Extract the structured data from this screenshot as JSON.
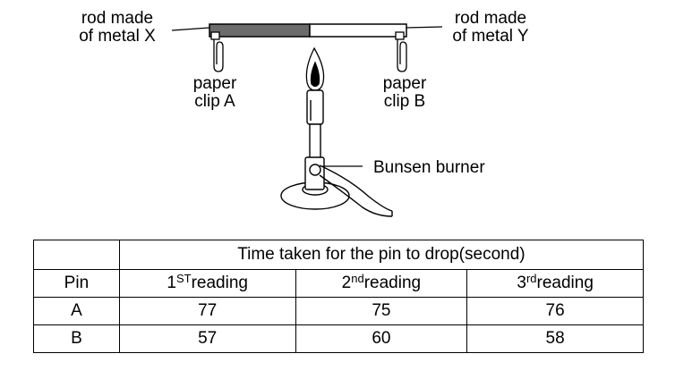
{
  "diagram": {
    "label_rod_x": [
      "rod made",
      "of metal X"
    ],
    "label_rod_y": [
      "rod made",
      "of metal Y"
    ],
    "label_clip_a": [
      "paper",
      "clip A"
    ],
    "label_clip_b": [
      "paper",
      "clip B"
    ],
    "label_burner": "Bunsen burner"
  },
  "table": {
    "group_header": "Time taken for the pin to drop(second)",
    "pin_header": "Pin",
    "reading_headers": [
      {
        "num": "1",
        "suffix": "ST",
        "word": "reading"
      },
      {
        "num": "2",
        "suffix": "nd",
        "word": "reading"
      },
      {
        "num": "3",
        "suffix": "rd",
        "word": "reading"
      }
    ],
    "rows": [
      {
        "pin": "A",
        "values": [
          "77",
          "75",
          "76"
        ]
      },
      {
        "pin": "B",
        "values": [
          "57",
          "60",
          "58"
        ]
      }
    ]
  }
}
